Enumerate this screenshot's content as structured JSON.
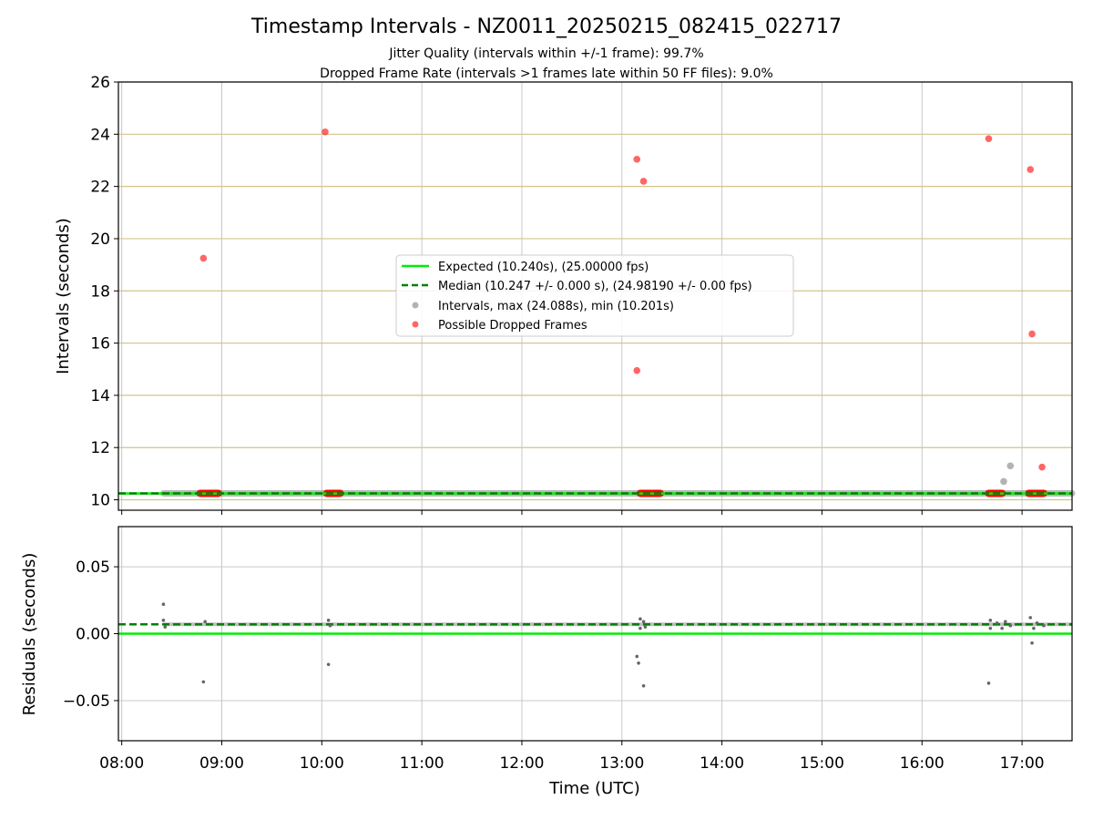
{
  "title": "Timestamp Intervals - NZ0011_20250215_082415_022717",
  "subtitle_lines": [
    "Jitter Quality (intervals within +/-1 frame): 99.7%",
    "Dropped Frame Rate (intervals >1 frames late within 50 FF files): 9.0%"
  ],
  "legend": {
    "expected": "Expected (10.240s), (25.00000 fps)",
    "median": "Median (10.247 +/- 0.000 s), (24.98190 +/- 0.00 fps)",
    "intervals": "Intervals, max (24.088s), min (10.201s)",
    "dropped": "Possible Dropped Frames"
  },
  "colors": {
    "expected": "#00ee00",
    "median": "#008000",
    "intervals": "#808080",
    "dropped": "#ff0000",
    "top_grid_h": "#d4c38a",
    "grid": "#c8c8c8"
  },
  "chart_data": [
    {
      "type": "scatter",
      "xlabel": "",
      "ylabel": "Intervals (seconds)",
      "x_range": [
        "07:58",
        "17:30"
      ],
      "ylim": [
        9.6,
        26
      ],
      "y_ticks": [
        10,
        12,
        14,
        16,
        18,
        20,
        22,
        24,
        26
      ],
      "x_ticks": [
        "08:00",
        "09:00",
        "10:00",
        "11:00",
        "12:00",
        "13:00",
        "14:00",
        "15:00",
        "16:00",
        "17:00"
      ],
      "grid": true,
      "legend_position": "center",
      "expected_line": 10.24,
      "median_line": 10.247,
      "interval_segments": [
        [
          "08:25",
          "17:30"
        ]
      ],
      "intervals_points": [
        {
          "x": "16:49",
          "y": 10.7
        },
        {
          "x": "16:53",
          "y": 11.3
        }
      ],
      "dropped_clusters": [
        [
          "08:47",
          "08:58"
        ],
        [
          "10:03",
          "10:11"
        ],
        [
          "13:11",
          "13:23"
        ],
        [
          "16:40",
          "16:48"
        ],
        [
          "17:04",
          "17:13"
        ]
      ],
      "dropped_points": [
        {
          "x": "08:49",
          "y": 19.25
        },
        {
          "x": "10:02",
          "y": 24.09
        },
        {
          "x": "13:09",
          "y": 23.04
        },
        {
          "x": "13:13",
          "y": 22.2
        },
        {
          "x": "13:09",
          "y": 14.95
        },
        {
          "x": "16:40",
          "y": 23.83
        },
        {
          "x": "17:05",
          "y": 22.65
        },
        {
          "x": "17:06",
          "y": 16.35
        },
        {
          "x": "17:12",
          "y": 11.25
        }
      ]
    },
    {
      "type": "scatter",
      "xlabel": "Time (UTC)",
      "ylabel": "Residuals (seconds)",
      "x_range": [
        "07:58",
        "17:30"
      ],
      "ylim": [
        -0.08,
        0.08
      ],
      "y_ticks": [
        -0.05,
        0.0,
        0.05
      ],
      "y_tick_labels": [
        "−0.05",
        "0.00",
        "0.05"
      ],
      "x_ticks": [
        "08:00",
        "09:00",
        "10:00",
        "11:00",
        "12:00",
        "13:00",
        "14:00",
        "15:00",
        "16:00",
        "17:00"
      ],
      "grid": true,
      "expected_line": 0.0,
      "median_line": 0.007,
      "residual_band": [
        [
          "08:25",
          "17:30"
        ]
      ],
      "residual_points": [
        {
          "x": "08:25",
          "y": 0.022
        },
        {
          "x": "08:25",
          "y": 0.01
        },
        {
          "x": "08:26",
          "y": 0.005
        },
        {
          "x": "08:49",
          "y": -0.036
        },
        {
          "x": "08:50",
          "y": 0.009
        },
        {
          "x": "10:04",
          "y": -0.023
        },
        {
          "x": "10:04",
          "y": 0.01
        },
        {
          "x": "10:05",
          "y": 0.006
        },
        {
          "x": "13:09",
          "y": -0.017
        },
        {
          "x": "13:10",
          "y": -0.022
        },
        {
          "x": "13:11",
          "y": 0.011
        },
        {
          "x": "13:11",
          "y": 0.004
        },
        {
          "x": "13:13",
          "y": -0.039
        },
        {
          "x": "13:13",
          "y": 0.009
        },
        {
          "x": "13:14",
          "y": 0.005
        },
        {
          "x": "16:40",
          "y": -0.037
        },
        {
          "x": "16:41",
          "y": 0.01
        },
        {
          "x": "16:41",
          "y": 0.004
        },
        {
          "x": "16:45",
          "y": 0.008
        },
        {
          "x": "16:48",
          "y": 0.004
        },
        {
          "x": "16:50",
          "y": 0.009
        },
        {
          "x": "16:53",
          "y": 0.006
        },
        {
          "x": "17:05",
          "y": 0.012
        },
        {
          "x": "17:06",
          "y": -0.007
        },
        {
          "x": "17:07",
          "y": 0.004
        },
        {
          "x": "17:09",
          "y": 0.008
        },
        {
          "x": "17:13",
          "y": 0.006
        }
      ]
    }
  ]
}
